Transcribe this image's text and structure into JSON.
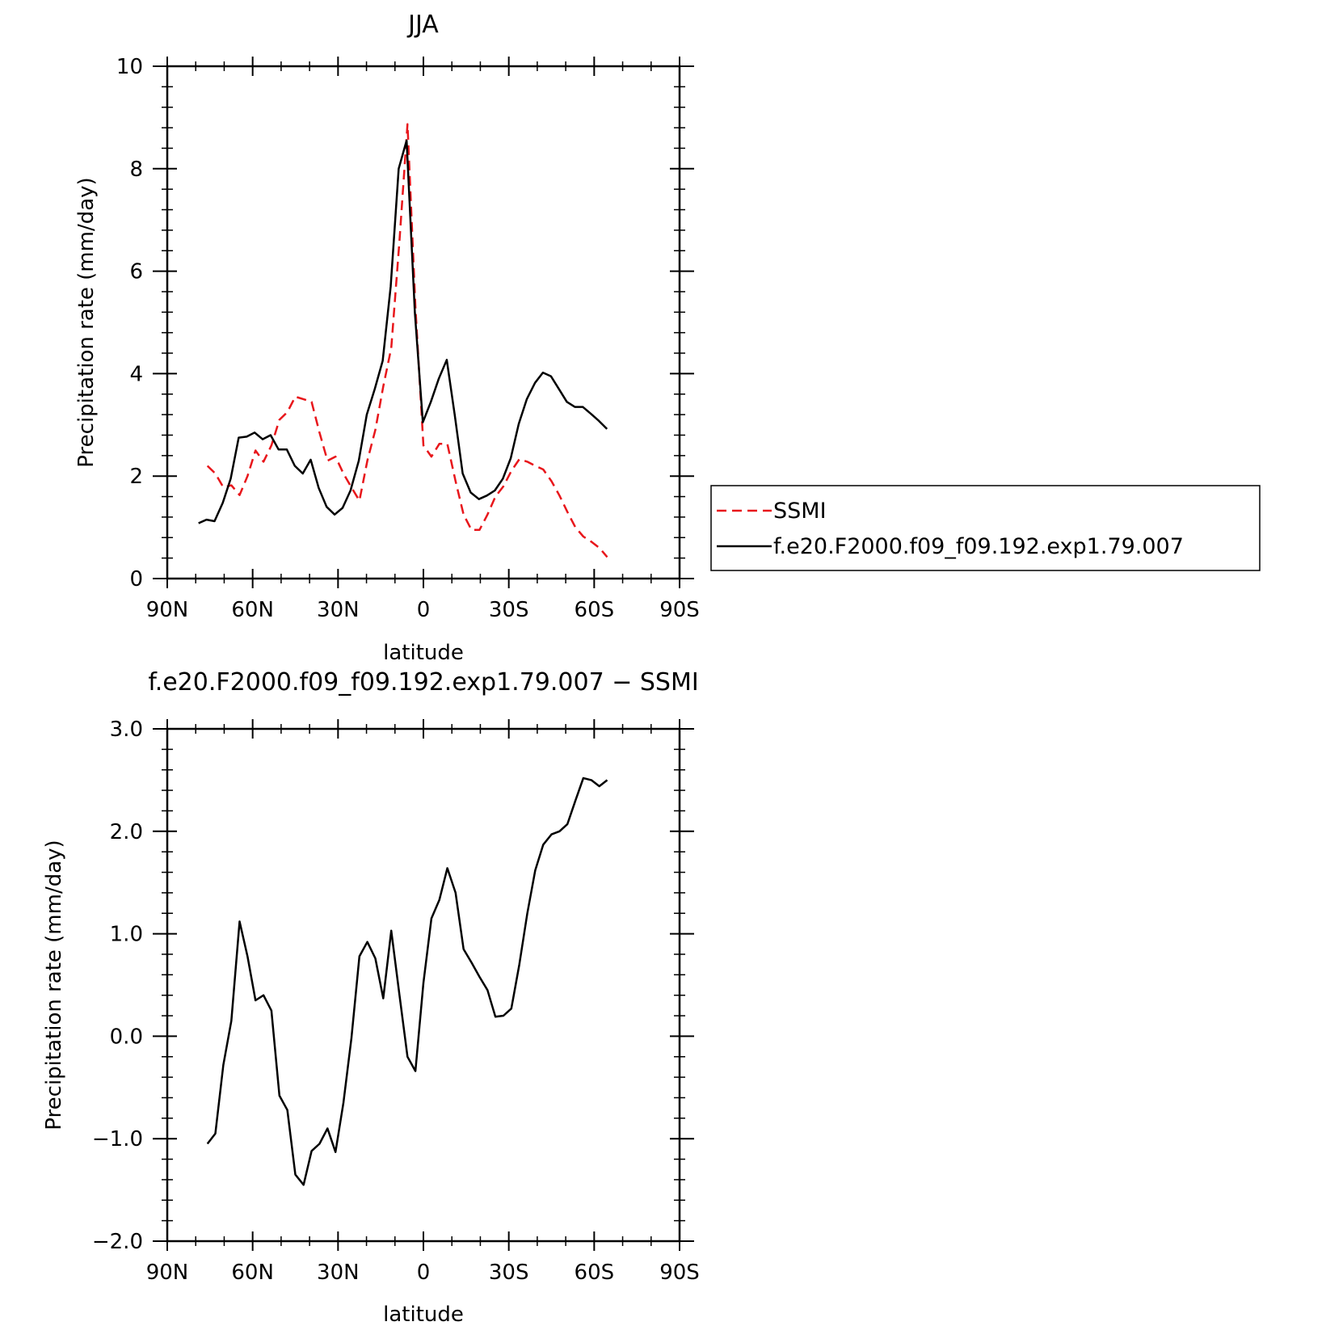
{
  "colors": {
    "model": "#000000",
    "obs": "#e8161b",
    "background": "#ffffff"
  },
  "chart_data": [
    {
      "type": "line",
      "title": "JJA",
      "xlabel": "latitude",
      "ylabel": "Precipitation rate (mm/day)",
      "xlim": [
        90,
        -90
      ],
      "ylim": [
        0,
        10
      ],
      "xticks": [
        90,
        60,
        30,
        0,
        -30,
        -60,
        -90
      ],
      "xtick_labels": [
        "90N",
        "60N",
        "30N",
        "0",
        "30S",
        "60S",
        "90S"
      ],
      "yticks": [
        0,
        2,
        4,
        6,
        8,
        10
      ],
      "ytick_labels": [
        "0",
        "2",
        "4",
        "6",
        "8",
        "10"
      ],
      "legend_position": "right",
      "series": [
        {
          "name": "SSMI",
          "style": "dashed",
          "color": "#e8161b",
          "x": [
            75.9,
            73.1,
            70.3,
            67.5,
            64.6,
            61.8,
            59.0,
            56.2,
            53.4,
            50.6,
            47.8,
            45.0,
            42.1,
            39.3,
            36.5,
            33.7,
            30.9,
            28.1,
            25.3,
            22.5,
            19.7,
            16.9,
            14.1,
            11.3,
            8.4,
            5.6,
            2.8,
            0.0,
            -2.8,
            -5.6,
            -8.4,
            -11.3,
            -14.1,
            -16.9,
            -19.7,
            -22.5,
            -25.3,
            -28.1,
            -30.9,
            -33.7,
            -36.5,
            -39.3,
            -42.1,
            -45.0,
            -47.8,
            -50.6,
            -53.4,
            -56.2,
            -59.0,
            -61.8,
            -64.6
          ],
          "y": [
            2.2,
            2.05,
            1.78,
            1.82,
            1.63,
            2.0,
            2.5,
            2.28,
            2.6,
            3.1,
            3.25,
            3.55,
            3.5,
            3.45,
            2.85,
            2.3,
            2.38,
            2.05,
            1.78,
            1.52,
            2.3,
            2.9,
            3.75,
            4.5,
            6.6,
            8.87,
            5.3,
            2.6,
            2.38,
            2.63,
            2.63,
            1.9,
            1.25,
            0.95,
            0.95,
            1.25,
            1.6,
            1.8,
            2.1,
            2.33,
            2.28,
            2.2,
            2.13,
            1.9,
            1.62,
            1.3,
            1.0,
            0.82,
            0.72,
            0.6,
            0.42
          ]
        },
        {
          "name": "f.e20.F2000.f09_f09.192.exp1.79.007",
          "style": "solid",
          "color": "#000000",
          "x": [
            79.0,
            76.2,
            73.4,
            70.5,
            67.7,
            64.9,
            62.1,
            59.3,
            56.5,
            53.7,
            50.9,
            48.0,
            45.2,
            42.4,
            39.6,
            36.8,
            34.0,
            31.2,
            28.4,
            25.6,
            22.7,
            19.9,
            17.1,
            14.3,
            11.5,
            8.7,
            5.9,
            3.0,
            0.2,
            -2.6,
            -5.4,
            -8.2,
            -11.0,
            -13.8,
            -16.6,
            -19.5,
            -22.3,
            -25.1,
            -27.9,
            -30.7,
            -33.5,
            -36.3,
            -39.2,
            -42.0,
            -44.8,
            -47.6,
            -50.4,
            -53.2,
            -56.0,
            -58.8,
            -61.6,
            -64.5
          ],
          "y": [
            1.08,
            1.15,
            1.12,
            1.48,
            1.95,
            2.75,
            2.77,
            2.85,
            2.72,
            2.8,
            2.52,
            2.52,
            2.2,
            2.05,
            2.32,
            1.77,
            1.4,
            1.25,
            1.38,
            1.72,
            2.3,
            3.2,
            3.7,
            4.25,
            5.7,
            8.0,
            8.55,
            5.2,
            3.05,
            3.45,
            3.9,
            4.27,
            3.2,
            2.05,
            1.68,
            1.55,
            1.62,
            1.72,
            1.95,
            2.35,
            3.02,
            3.5,
            3.82,
            4.02,
            3.95,
            3.7,
            3.45,
            3.35,
            3.35,
            3.22,
            3.08,
            2.92
          ]
        }
      ]
    },
    {
      "type": "line",
      "title": "f.e20.F2000.f09_f09.192.exp1.79.007 − SSMI",
      "xlabel": "latitude",
      "ylabel": "Precipitation rate (mm/day)",
      "xlim": [
        90,
        -90
      ],
      "ylim": [
        -2,
        3
      ],
      "xticks": [
        90,
        60,
        30,
        0,
        -30,
        -60,
        -90
      ],
      "xtick_labels": [
        "90N",
        "60N",
        "30N",
        "0",
        "30S",
        "60S",
        "90S"
      ],
      "yticks": [
        -2,
        -1,
        0,
        1,
        2,
        3
      ],
      "ytick_labels": [
        "−2.0",
        "−1.0",
        "0.0",
        "1.0",
        "2.0",
        "3.0"
      ],
      "series": [
        {
          "style": "solid",
          "color": "#000000",
          "x": [
            75.9,
            73.1,
            70.3,
            67.5,
            64.6,
            61.8,
            59.0,
            56.2,
            53.4,
            50.6,
            47.8,
            45.0,
            42.1,
            39.3,
            36.5,
            33.7,
            30.9,
            28.1,
            25.3,
            22.5,
            19.7,
            16.9,
            14.1,
            11.3,
            8.4,
            5.6,
            2.8,
            0.0,
            -2.8,
            -5.6,
            -8.4,
            -11.3,
            -14.1,
            -16.9,
            -19.7,
            -22.5,
            -25.3,
            -28.1,
            -30.9,
            -33.7,
            -36.5,
            -39.3,
            -42.1,
            -45.0,
            -47.8,
            -50.6,
            -53.4,
            -56.2,
            -59.0,
            -61.8,
            -64.6
          ],
          "y": [
            -1.05,
            -0.95,
            -0.28,
            0.15,
            1.12,
            0.78,
            0.35,
            0.4,
            0.25,
            -0.58,
            -0.72,
            -1.35,
            -1.45,
            -1.12,
            -1.05,
            -0.9,
            -1.13,
            -0.65,
            -0.02,
            0.78,
            0.92,
            0.76,
            0.37,
            1.03,
            0.4,
            -0.2,
            -0.34,
            0.52,
            1.15,
            1.33,
            1.64,
            1.4,
            0.85,
            0.72,
            0.58,
            0.45,
            0.19,
            0.2,
            0.27,
            0.7,
            1.2,
            1.62,
            1.87,
            1.97,
            2.0,
            2.07,
            2.3,
            2.52,
            2.5,
            2.44,
            2.5
          ]
        }
      ]
    }
  ]
}
